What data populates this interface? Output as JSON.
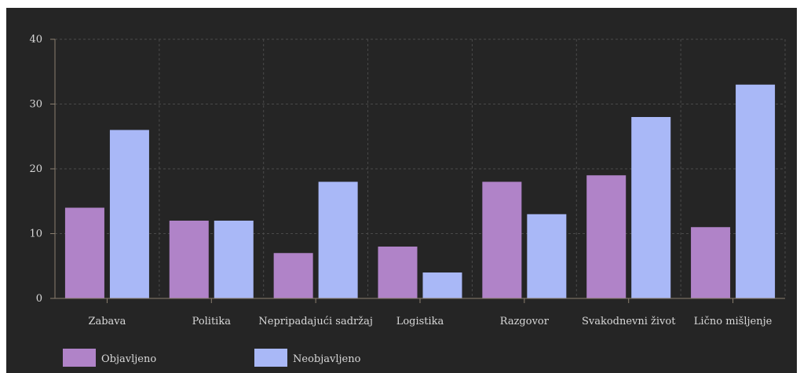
{
  "chart_data": {
    "type": "bar",
    "categories": [
      "Zabava",
      "Politika",
      "Nepripadajući sadržaj",
      "Logistika",
      "Razgovor",
      "Svakodnevni život",
      "Lično mišljenje"
    ],
    "series": [
      {
        "name": "Objavljeno",
        "values": [
          14,
          12,
          7,
          8,
          18,
          19,
          11
        ],
        "color": "#b083c8"
      },
      {
        "name": "Neobjavljeno",
        "values": [
          26,
          12,
          18,
          4,
          13,
          28,
          33
        ],
        "color": "#a9b8f7"
      }
    ],
    "y_ticks": [
      "0",
      "10",
      "20",
      "30",
      "40"
    ],
    "ylim": [
      0,
      40
    ],
    "grid": true,
    "legend_position": "bottom-left",
    "background": "#252525",
    "axis_color": "#8a7e6e",
    "grid_color": "#4a4a4a"
  }
}
